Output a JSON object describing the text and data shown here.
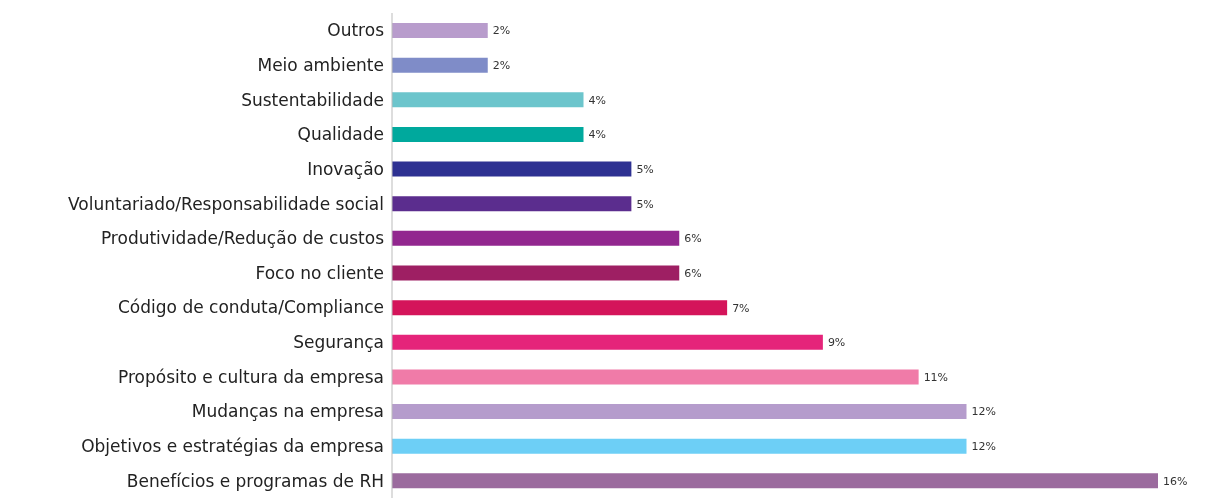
{
  "chart_data": {
    "type": "bar",
    "orientation": "horizontal",
    "categories": [
      "Outros",
      "Meio ambiente",
      "Sustentabilidade",
      "Qualidade",
      "Inovação",
      "Voluntariado/Responsabilidade social",
      "Produtividade/Redução de custos",
      "Foco no cliente",
      "Código de conduta/Compliance",
      "Segurança",
      "Propósito e cultura da empresa",
      "Mudanças na empresa",
      "Objetivos e estratégias da empresa",
      "Benefícios e programas de RH"
    ],
    "values": [
      2,
      2,
      4,
      4,
      5,
      5,
      6,
      6,
      7,
      9,
      11,
      12,
      12,
      16
    ],
    "value_labels": [
      "2%",
      "2%",
      "4%",
      "4%",
      "5%",
      "5%",
      "6%",
      "6%",
      "7%",
      "9%",
      "11%",
      "12%",
      "12%",
      "16%"
    ],
    "colors": [
      "#b89ccc",
      "#7f8cc8",
      "#6cc5cc",
      "#00a99d",
      "#2e3192",
      "#5b2d8e",
      "#92278f",
      "#9e1f63",
      "#d4145a",
      "#e5247a",
      "#f07ba8",
      "#b59ccc",
      "#6dcff6",
      "#9b6b9e"
    ],
    "legend": false,
    "grid": false
  }
}
